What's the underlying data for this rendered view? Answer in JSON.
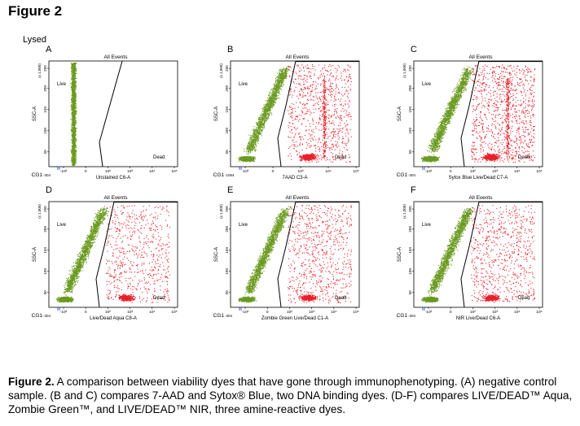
{
  "figure": {
    "title": "Figure 2",
    "condition_label": "Lysed"
  },
  "panels": [
    {
      "letter": "A",
      "gate_label": "All Events",
      "live_label": "Live",
      "dead_label": "Dead",
      "xlabel": "Unstained C6-A",
      "ylabel": "SSC-A",
      "cg_label": "CG1",
      "xtick_min": "-304",
      "x_ticks": [
        "-10²",
        "0",
        "10²",
        "10³",
        "10⁴",
        "10⁵"
      ],
      "y_ticks": [
        "50",
        "100",
        "150",
        "200",
        "250"
      ],
      "y_scale_note": "(x 1,000)",
      "dead_fraction": 0.0
    },
    {
      "letter": "B",
      "gate_label": "All Events",
      "live_label": "Live",
      "dead_label": "Dead",
      "xlabel": "7AAD C3-A",
      "ylabel": "SSC-A",
      "cg_label": "CG1",
      "xtick_min": "-1064",
      "x_ticks": [
        "-10³",
        "0",
        "10³",
        "10⁴",
        "10⁵"
      ],
      "y_ticks": [
        "50",
        "100",
        "150",
        "200",
        "250"
      ],
      "y_scale_note": "(x 1,000)",
      "dead_fraction": 0.45
    },
    {
      "letter": "C",
      "gate_label": "All Events",
      "live_label": "Live",
      "dead_label": "Dead",
      "xlabel": "Sytox Blue Live/Dead C7-A",
      "ylabel": "SSC-A",
      "cg_label": "CG1",
      "xtick_min": "-304",
      "x_ticks": [
        "-10²",
        "0",
        "10²",
        "10³",
        "10⁴",
        "10⁵"
      ],
      "y_ticks": [
        "50",
        "100",
        "150",
        "200",
        "250"
      ],
      "y_scale_note": "(x 1,000)",
      "dead_fraction": 0.55
    },
    {
      "letter": "D",
      "gate_label": "All Events",
      "live_label": "Live",
      "dead_label": "Dead",
      "xlabel": "Live/Dead Aqua C8-A",
      "ylabel": "SSC-A",
      "cg_label": "CG1",
      "xtick_min": "-304",
      "x_ticks": [
        "-10²",
        "0",
        "10²",
        "10³",
        "10⁴",
        "10⁵"
      ],
      "y_ticks": [
        "50",
        "100",
        "150",
        "200",
        "250"
      ],
      "y_scale_note": "(x 1,000)",
      "dead_fraction": 0.35
    },
    {
      "letter": "E",
      "gate_label": "All Events",
      "live_label": "Live",
      "dead_label": "Dead",
      "xlabel": "Zombie Green Live/Dead C1-A",
      "ylabel": "SSC-A",
      "cg_label": "CG1",
      "xtick_min": "-304",
      "x_ticks": [
        "-10²",
        "0",
        "10²",
        "10³",
        "10⁴",
        "10⁵"
      ],
      "y_ticks": [
        "50",
        "100",
        "150",
        "200",
        "250"
      ],
      "y_scale_note": "(x 1,000)",
      "dead_fraction": 0.4
    },
    {
      "letter": "F",
      "gate_label": "All Events",
      "live_label": "Live",
      "dead_label": "Dead",
      "xlabel": "NIR Live/Dead C6-A",
      "ylabel": "SSC-A",
      "cg_label": "CG1",
      "xtick_min": "-304",
      "x_ticks": [
        "-10²",
        "0",
        "10²",
        "10³",
        "10⁴",
        "10⁵"
      ],
      "y_ticks": [
        "50",
        "100",
        "150",
        "200",
        "250"
      ],
      "y_scale_note": "(x 1,000)",
      "dead_fraction": 0.4
    }
  ],
  "colors": {
    "live": "#6a9a1f",
    "dead": "#e8202a",
    "gate": "#000000"
  },
  "caption": {
    "label": "Figure 2.",
    "text": " A comparison between viability dyes that have gone through immunophenotyping. (A) negative control sample. (B and C) compares 7-AAD and Sytox® Blue, two DNA binding dyes. (D-F) compares LIVE/DEAD™ Aqua, Zombie Green™, and LIVE/DEAD™ NIR, three amine-reactive dyes."
  }
}
